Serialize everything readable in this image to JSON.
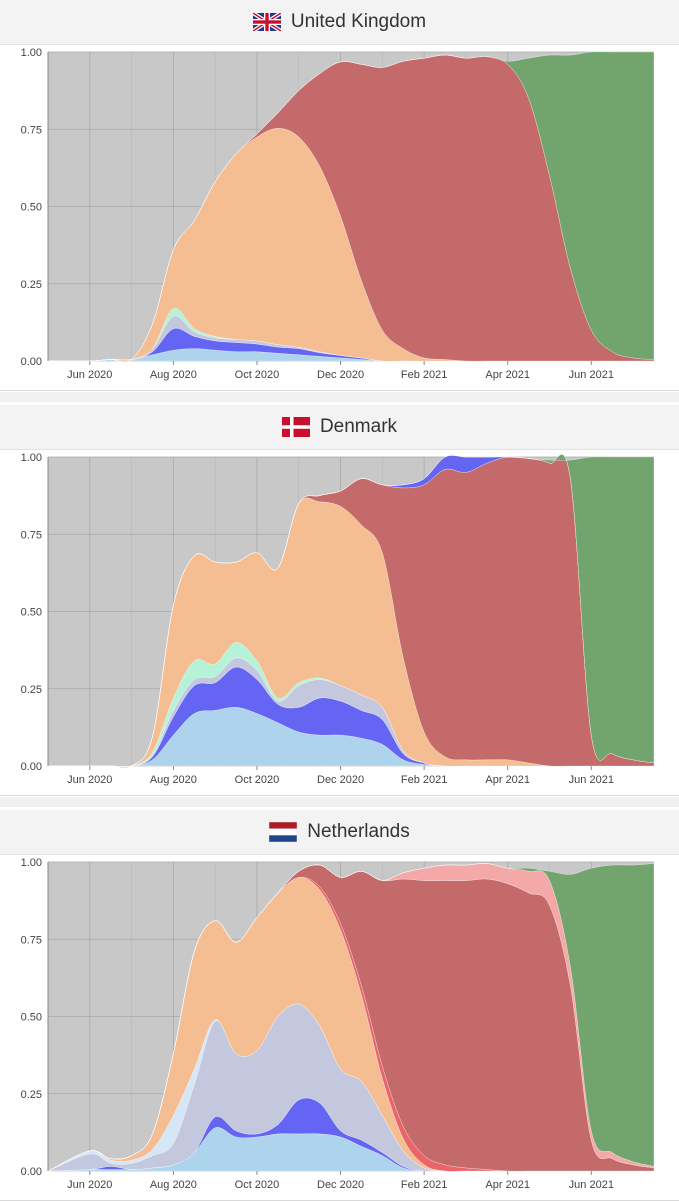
{
  "colors": {
    "other": "#c8c8c8",
    "ea_1": "#f5bd92",
    "alpha": "#c46a6a",
    "delta": "#72a56d",
    "light_blue": "#aed3ed",
    "blue": "#6565f3",
    "lavender": "#c4c8de",
    "mint": "#b5f2d7",
    "pink": "#f4a8a8",
    "red": "#e9656a",
    "pale_blue": "#d5e6f7"
  },
  "charts": [
    {
      "title": "United Kingdom",
      "flag": "uk-flag-icon",
      "chart_data": {
        "type": "area",
        "stacked": true,
        "x_ticks": [
          "Jun 2020",
          "Aug 2020",
          "Oct 2020",
          "Dec 2020",
          "Feb 2021",
          "Apr 2021",
          "Jun 2021"
        ],
        "y_ticks": [
          "0.00",
          "0.25",
          "0.50",
          "0.75",
          "1.00"
        ],
        "ylim": [
          0,
          1
        ],
        "x": [
          0,
          1,
          1.5,
          2,
          2.5,
          3,
          3.5,
          4,
          4.5,
          5,
          5.5,
          6,
          6.5,
          7,
          7.5,
          8,
          8.5,
          9,
          9.5,
          10,
          10.5,
          11,
          11.5,
          12,
          12.5,
          13,
          13.5,
          14,
          14.5
        ],
        "series": [
          {
            "color_key": "light_blue",
            "values": [
              0,
              0,
              0.005,
              0.005,
              0.02,
              0.035,
              0.04,
              0.035,
              0.03,
              0.03,
              0.025,
              0.02,
              0.015,
              0.01,
              0.005,
              0,
              0,
              0,
              0,
              0,
              0,
              0,
              0,
              0,
              0,
              0,
              0,
              0,
              0
            ]
          },
          {
            "color_key": "blue",
            "values": [
              0,
              0,
              0,
              0,
              0.01,
              0.07,
              0.04,
              0.03,
              0.03,
              0.025,
              0.02,
              0.02,
              0.012,
              0.008,
              0.005,
              0,
              0,
              0,
              0,
              0,
              0,
              0,
              0,
              0,
              0,
              0,
              0,
              0,
              0
            ]
          },
          {
            "color_key": "lavender",
            "values": [
              0,
              0,
              0,
              0,
              0.01,
              0.04,
              0.015,
              0.01,
              0.01,
              0.01,
              0.008,
              0.005,
              0.003,
              0,
              0,
              0,
              0,
              0,
              0,
              0,
              0,
              0,
              0,
              0,
              0,
              0,
              0,
              0,
              0
            ]
          },
          {
            "color_key": "mint",
            "values": [
              0,
              0,
              0,
              0,
              0,
              0.025,
              0.01,
              0.005,
              0,
              0,
              0,
              0,
              0,
              0,
              0,
              0,
              0,
              0,
              0,
              0,
              0,
              0,
              0,
              0,
              0,
              0,
              0,
              0,
              0
            ]
          },
          {
            "color_key": "ea_1",
            "values": [
              0,
              0,
              0,
              0,
              0.08,
              0.19,
              0.35,
              0.5,
              0.6,
              0.66,
              0.7,
              0.68,
              0.6,
              0.45,
              0.25,
              0.1,
              0.04,
              0.01,
              0.005,
              0,
              0,
              0,
              0,
              0,
              0,
              0,
              0,
              0,
              0
            ]
          },
          {
            "color_key": "alpha",
            "values": [
              0,
              0,
              0,
              0,
              0,
              0,
              0,
              0,
              0,
              0.01,
              0.05,
              0.15,
              0.3,
              0.5,
              0.7,
              0.85,
              0.93,
              0.97,
              0.985,
              0.98,
              0.985,
              0.96,
              0.85,
              0.6,
              0.3,
              0.1,
              0.03,
              0.01,
              0.005
            ]
          },
          {
            "color_key": "delta",
            "values": [
              0,
              0,
              0,
              0,
              0,
              0,
              0,
              0,
              0,
              0,
              0,
              0,
              0,
              0,
              0,
              0,
              0,
              0,
              0,
              0,
              0,
              0.01,
              0.13,
              0.39,
              0.69,
              0.9,
              0.97,
              0.99,
              0.995
            ]
          }
        ]
      }
    },
    {
      "title": "Denmark",
      "flag": "denmark-flag-icon",
      "chart_data": {
        "type": "area",
        "stacked": true,
        "x_ticks": [
          "Jun 2020",
          "Aug 2020",
          "Oct 2020",
          "Dec 2020",
          "Feb 2021",
          "Apr 2021",
          "Jun 2021"
        ],
        "y_ticks": [
          "0.00",
          "0.25",
          "0.50",
          "0.75",
          "1.00"
        ],
        "ylim": [
          0,
          1
        ],
        "x": [
          0,
          1,
          1.5,
          2,
          2.5,
          3,
          3.5,
          4,
          4.5,
          5,
          5.5,
          6,
          6.5,
          7,
          7.5,
          8,
          8.5,
          9,
          9.5,
          10,
          10.5,
          11,
          11.5,
          12,
          12.5,
          13,
          13.5,
          14,
          14.5
        ],
        "series": [
          {
            "color_key": "light_blue",
            "values": [
              0,
              0,
              0,
              0,
              0.02,
              0.1,
              0.17,
              0.18,
              0.19,
              0.17,
              0.14,
              0.11,
              0.1,
              0.1,
              0.09,
              0.07,
              0.02,
              0.005,
              0,
              0,
              0,
              0,
              0,
              0,
              0,
              0,
              0,
              0,
              0
            ]
          },
          {
            "color_key": "blue",
            "values": [
              0,
              0,
              0,
              0,
              0.01,
              0.06,
              0.09,
              0.09,
              0.13,
              0.11,
              0.06,
              0.08,
              0.12,
              0.11,
              0.09,
              0.08,
              0.02,
              0.005,
              0,
              0,
              0,
              0,
              0,
              0,
              0,
              0,
              0,
              0,
              0
            ]
          },
          {
            "color_key": "lavender",
            "values": [
              0,
              0,
              0,
              0,
              0.005,
              0.02,
              0.02,
              0.02,
              0.03,
              0.03,
              0.01,
              0.07,
              0.06,
              0.05,
              0.05,
              0.04,
              0.01,
              0,
              0,
              0,
              0,
              0,
              0,
              0,
              0,
              0,
              0,
              0,
              0
            ]
          },
          {
            "color_key": "mint",
            "values": [
              0,
              0,
              0,
              0,
              0.01,
              0.04,
              0.06,
              0.04,
              0.05,
              0.03,
              0.01,
              0.01,
              0.005,
              0,
              0,
              0,
              0,
              0,
              0,
              0,
              0,
              0,
              0,
              0,
              0,
              0,
              0,
              0,
              0
            ]
          },
          {
            "color_key": "ea_1",
            "values": [
              0,
              0,
              0,
              0,
              0.05,
              0.3,
              0.34,
              0.33,
              0.26,
              0.35,
              0.42,
              0.58,
              0.57,
              0.58,
              0.55,
              0.5,
              0.3,
              0.1,
              0.03,
              0.02,
              0.02,
              0.02,
              0.01,
              0,
              0,
              0,
              0,
              0,
              0
            ]
          },
          {
            "color_key": "alpha",
            "values": [
              0,
              0,
              0,
              0,
              0,
              0,
              0,
              0,
              0,
              0,
              0,
              0,
              0.02,
              0.05,
              0.15,
              0.22,
              0.55,
              0.8,
              0.93,
              0.93,
              0.96,
              0.98,
              0.985,
              0.98,
              0.93,
              0.1,
              0.04,
              0.02,
              0.01
            ]
          },
          {
            "color_key": "blue",
            "values": [
              0,
              0,
              0,
              0,
              0,
              0,
              0,
              0,
              0,
              0,
              0,
              0,
              0,
              0,
              0,
              0,
              0.01,
              0.02,
              0.04,
              0.05,
              0.02,
              0,
              0,
              0,
              0,
              0,
              0,
              0,
              0
            ]
          },
          {
            "color_key": "delta",
            "values": [
              0,
              0,
              0,
              0,
              0,
              0,
              0,
              0,
              0,
              0,
              0,
              0,
              0,
              0,
              0,
              0,
              0,
              0,
              0,
              0,
              0,
              0,
              0,
              0.01,
              0.06,
              0.9,
              0.96,
              0.98,
              0.99
            ]
          }
        ]
      }
    },
    {
      "title": "Netherlands",
      "flag": "netherlands-flag-icon",
      "chart_data": {
        "type": "area",
        "stacked": true,
        "x_ticks": [
          "Jun 2020",
          "Aug 2020",
          "Oct 2020",
          "Dec 2020",
          "Feb 2021",
          "Apr 2021",
          "Jun 2021"
        ],
        "y_ticks": [
          "0.00",
          "0.25",
          "0.50",
          "0.75",
          "1.00"
        ],
        "ylim": [
          0,
          1
        ],
        "x": [
          0,
          1,
          1.5,
          2,
          2.5,
          3,
          3.5,
          4,
          4.5,
          5,
          5.5,
          6,
          6.5,
          7,
          7.5,
          8,
          8.5,
          9,
          9.5,
          10,
          10.5,
          11,
          11.5,
          12,
          12.5,
          13,
          13.5,
          14,
          14.5
        ],
        "series": [
          {
            "color_key": "light_blue",
            "values": [
              0,
              0.005,
              0.005,
              0.005,
              0.01,
              0.02,
              0.06,
              0.14,
              0.11,
              0.11,
              0.12,
              0.12,
              0.12,
              0.11,
              0.08,
              0.05,
              0.01,
              0,
              0,
              0,
              0,
              0,
              0,
              0,
              0,
              0,
              0,
              0,
              0
            ]
          },
          {
            "color_key": "blue",
            "values": [
              0,
              0,
              0.01,
              0,
              0,
              0,
              0,
              0.035,
              0.02,
              0.01,
              0.03,
              0.11,
              0.1,
              0.02,
              0.02,
              0.01,
              0.005,
              0,
              0,
              0,
              0,
              0,
              0,
              0,
              0,
              0,
              0,
              0,
              0
            ]
          },
          {
            "color_key": "lavender",
            "values": [
              0,
              0.05,
              0.01,
              0.02,
              0.04,
              0.07,
              0.22,
              0.31,
              0.25,
              0.27,
              0.35,
              0.31,
              0.25,
              0.2,
              0.19,
              0.12,
              0.05,
              0.01,
              0,
              0,
              0,
              0,
              0,
              0,
              0,
              0,
              0,
              0,
              0
            ]
          },
          {
            "color_key": "pale_blue",
            "values": [
              0,
              0.01,
              0.01,
              0.01,
              0.02,
              0.09,
              0.05,
              0.005,
              0,
              0,
              0,
              0,
              0,
              0,
              0,
              0,
              0,
              0,
              0,
              0,
              0,
              0,
              0,
              0,
              0,
              0,
              0,
              0,
              0
            ]
          },
          {
            "color_key": "ea_1",
            "values": [
              0,
              0,
              0.005,
              0.015,
              0.05,
              0.2,
              0.38,
              0.32,
              0.36,
              0.43,
              0.4,
              0.41,
              0.44,
              0.45,
              0.28,
              0.12,
              0.04,
              0.01,
              0,
              0,
              0,
              0,
              0,
              0,
              0,
              0,
              0,
              0,
              0
            ]
          },
          {
            "color_key": "red",
            "values": [
              0,
              0,
              0,
              0,
              0,
              0,
              0,
              0,
              0,
              0,
              0,
              0,
              0.01,
              0.02,
              0.03,
              0.04,
              0.04,
              0.03,
              0.02,
              0.01,
              0.005,
              0,
              0,
              0,
              0,
              0,
              0,
              0,
              0
            ]
          },
          {
            "color_key": "alpha",
            "values": [
              0,
              0,
              0,
              0,
              0,
              0,
              0,
              0,
              0,
              0,
              0,
              0.02,
              0.07,
              0.15,
              0.37,
              0.6,
              0.8,
              0.89,
              0.92,
              0.93,
              0.94,
              0.93,
              0.9,
              0.86,
              0.6,
              0.1,
              0.04,
              0.02,
              0.01
            ]
          },
          {
            "color_key": "pink",
            "values": [
              0,
              0,
              0,
              0,
              0,
              0,
              0,
              0,
              0,
              0,
              0,
              0,
              0,
              0,
              0,
              0,
              0.02,
              0.04,
              0.05,
              0.05,
              0.05,
              0.05,
              0.07,
              0.08,
              0.06,
              0.03,
              0.02,
              0.01,
              0.005
            ]
          },
          {
            "color_key": "delta",
            "values": [
              0,
              0,
              0,
              0,
              0,
              0,
              0,
              0,
              0,
              0,
              0,
              0,
              0,
              0,
              0,
              0,
              0,
              0,
              0,
              0,
              0,
              0,
              0.01,
              0.03,
              0.3,
              0.85,
              0.93,
              0.96,
              0.98
            ]
          }
        ]
      }
    }
  ]
}
